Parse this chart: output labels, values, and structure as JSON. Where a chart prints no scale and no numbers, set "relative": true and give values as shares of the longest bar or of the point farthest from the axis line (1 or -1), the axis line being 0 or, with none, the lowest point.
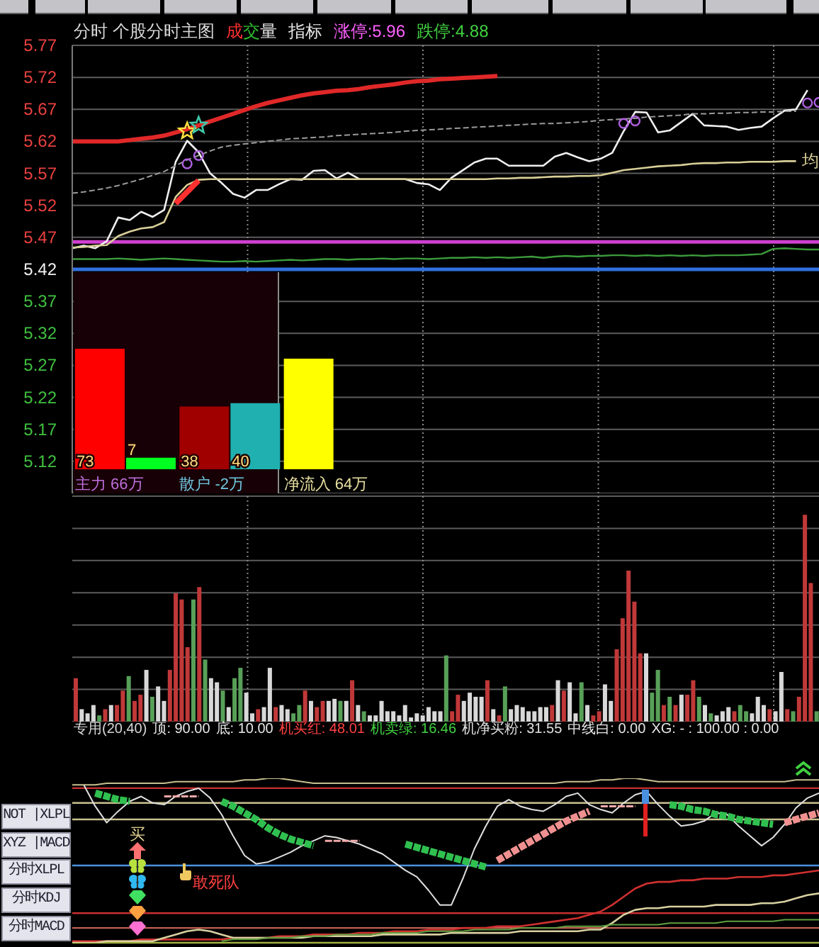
{
  "chart_data": [
    {
      "type": "line",
      "title": "分时 个股分时主图",
      "annotations": [
        "成交量",
        "指标",
        "涨停:5.96",
        "跌停:4.88"
      ],
      "categories": [
        null,
        null,
        null,
        null,
        null,
        null,
        null,
        null,
        null,
        null,
        null,
        null,
        null,
        null,
        null,
        null,
        null,
        null,
        null,
        null,
        null,
        null,
        null,
        null,
        null,
        null,
        null,
        null,
        null,
        null,
        null,
        null,
        null,
        null,
        null,
        null,
        null,
        null,
        null,
        null,
        null,
        null,
        null,
        null,
        null,
        null,
        null,
        null,
        null,
        null,
        null,
        null,
        null,
        null,
        null,
        null,
        null,
        null,
        null,
        null,
        null,
        null,
        null,
        null,
        null,
        null
      ],
      "ylim": [
        5.07,
        5.77
      ],
      "yticks": [
        5.12,
        5.17,
        5.22,
        5.27,
        5.32,
        5.37,
        5.42,
        5.47,
        5.52,
        5.57,
        5.62,
        5.67,
        5.72,
        5.77
      ],
      "tick_labels": "y",
      "grid": true,
      "series": [
        {
          "color": "#f0f0f0",
          "values": [
            5.453,
            5.457,
            5.453,
            5.464,
            5.501,
            5.497,
            5.51,
            5.502,
            5.513,
            5.588,
            5.621,
            5.603,
            5.57,
            5.555,
            5.538,
            5.532,
            5.544,
            5.544,
            5.553,
            5.561,
            5.56,
            5.574,
            5.575,
            5.562,
            5.571,
            5.561,
            5.561,
            5.561,
            5.561,
            5.561,
            5.555,
            5.553,
            5.544,
            5.563,
            5.575,
            5.587,
            5.593,
            5.593,
            5.582,
            5.582,
            5.582,
            5.582,
            5.596,
            5.602,
            5.595,
            5.589,
            5.593,
            5.602,
            5.636,
            5.666,
            5.665,
            5.634,
            5.637,
            5.65,
            5.663,
            5.645,
            5.644,
            5.643,
            5.638,
            5.641,
            5.643,
            5.656,
            5.668,
            5.67,
            5.7,
            null
          ]
        },
        {
          "name": "均",
          "color": "#d8cf98",
          "values": [
            5.454,
            5.455,
            5.457,
            5.458,
            5.472,
            5.479,
            5.484,
            5.486,
            5.494,
            5.533,
            5.552,
            5.56,
            5.561,
            5.561,
            5.561,
            5.561,
            5.561,
            5.561,
            5.561,
            5.561,
            5.561,
            5.561,
            5.561,
            5.561,
            5.561,
            5.561,
            5.561,
            5.561,
            5.561,
            5.561,
            5.561,
            5.561,
            5.561,
            5.561,
            5.561,
            5.561,
            5.561,
            5.562,
            5.562,
            5.563,
            5.563,
            5.564,
            5.565,
            5.565,
            5.566,
            5.566,
            5.567,
            5.571,
            5.575,
            5.577,
            5.579,
            5.581,
            5.582,
            5.583,
            5.585,
            5.586,
            5.586,
            5.587,
            5.587,
            5.588,
            5.588,
            5.588,
            5.589,
            5.589,
            null,
            null
          ]
        },
        {
          "color": "#e02828",
          "values": [
            5.62,
            5.62,
            5.62,
            5.62,
            5.62,
            5.622,
            5.624,
            5.626,
            5.629,
            5.634,
            5.639,
            5.645,
            5.651,
            5.657,
            5.663,
            5.669,
            5.675,
            5.68,
            5.684,
            5.688,
            5.692,
            5.695,
            5.697,
            5.699,
            5.7,
            5.702,
            5.705,
            5.707,
            5.709,
            5.712,
            5.714,
            5.715,
            5.717,
            5.718,
            5.719,
            5.72,
            5.721,
            5.722,
            null,
            null,
            null,
            null,
            null,
            null,
            null,
            null,
            null,
            null,
            null,
            null,
            null,
            null,
            null,
            null,
            null,
            null,
            null,
            null,
            null,
            null,
            null,
            null,
            null,
            null,
            null,
            null
          ]
        },
        {
          "color": "#9a9a9a",
          "line_style": "dashed",
          "values": [
            5.539,
            5.541,
            5.544,
            5.547,
            5.551,
            5.556,
            5.561,
            5.567,
            5.573,
            5.582,
            5.591,
            5.598,
            5.605,
            5.611,
            5.614,
            5.616,
            5.618,
            5.62,
            5.622,
            5.624,
            5.625,
            5.626,
            5.627,
            5.629,
            5.63,
            5.631,
            5.632,
            5.633,
            5.634,
            5.636,
            5.637,
            5.638,
            5.639,
            5.64,
            5.641,
            5.642,
            5.643,
            5.644,
            5.645,
            5.646,
            5.647,
            5.648,
            5.648,
            5.649,
            5.65,
            5.651,
            5.653,
            5.654,
            5.655,
            5.656,
            5.658,
            5.659,
            5.66,
            5.661,
            5.663,
            5.663,
            5.664,
            5.664,
            5.665,
            5.665,
            5.666,
            5.666,
            5.667,
            5.667,
            null,
            null
          ]
        },
        {
          "color": "#3c9c3c",
          "values": [
            5.436,
            5.436,
            5.436,
            5.436,
            5.437,
            5.436,
            5.435,
            5.436,
            5.437,
            5.436,
            5.435,
            5.434,
            5.433,
            5.432,
            5.432,
            5.433,
            5.432,
            5.433,
            5.434,
            5.435,
            5.434,
            5.435,
            5.436,
            5.436,
            5.435,
            5.436,
            5.436,
            5.437,
            5.436,
            5.437,
            5.437,
            5.436,
            5.437,
            5.438,
            5.438,
            5.439,
            5.438,
            5.439,
            5.438,
            5.439,
            5.44,
            5.438,
            5.44,
            5.441,
            5.44,
            5.441,
            5.441,
            5.442,
            5.442,
            5.441,
            5.442,
            5.441,
            5.442,
            5.441,
            5.442,
            5.441,
            5.442,
            5.442,
            5.442,
            5.443,
            5.444,
            5.452,
            5.453,
            5.452,
            5.451,
            5.451
          ]
        },
        {
          "color": "#ff3030",
          "values": [
            null,
            null,
            null,
            null,
            null,
            null,
            null,
            null,
            null,
            5.523,
            5.541,
            5.559,
            null,
            null,
            null,
            null,
            null,
            null,
            null,
            null,
            null,
            null,
            null,
            null,
            null,
            null,
            null,
            null,
            null,
            null,
            null,
            null,
            null,
            null,
            null,
            null,
            null,
            null,
            null,
            null,
            null,
            null,
            null,
            null,
            null,
            null,
            null,
            null,
            null,
            null,
            null,
            null,
            null,
            null,
            null,
            null,
            null,
            null,
            null,
            null,
            null,
            null,
            null,
            null,
            null,
            null
          ]
        },
        {
          "type": "scatter",
          "color": "#ffe040",
          "marker": "star",
          "values": [
            null,
            null,
            null,
            null,
            null,
            null,
            null,
            null,
            null,
            null,
            5.636,
            null,
            null,
            null,
            null,
            null,
            null,
            null,
            null,
            null,
            null,
            null,
            null,
            null,
            null,
            null,
            null,
            null,
            null,
            null,
            null,
            null,
            null,
            null,
            null,
            null,
            null,
            null,
            null,
            null,
            null,
            null,
            null,
            null,
            null,
            null,
            null,
            null,
            null,
            null,
            null,
            null,
            null,
            null,
            null,
            null,
            null,
            null,
            null,
            null,
            null,
            null,
            null,
            null,
            null,
            null
          ]
        },
        {
          "type": "scatter",
          "color": "#40c8a8",
          "marker": "star",
          "values": [
            null,
            null,
            null,
            null,
            null,
            null,
            null,
            null,
            null,
            null,
            null,
            5.645,
            null,
            null,
            null,
            null,
            null,
            null,
            null,
            null,
            null,
            null,
            null,
            null,
            null,
            null,
            null,
            null,
            null,
            null,
            null,
            null,
            null,
            null,
            null,
            null,
            null,
            null,
            null,
            null,
            null,
            null,
            null,
            null,
            null,
            null,
            null,
            null,
            null,
            null,
            null,
            null,
            null,
            null,
            null,
            null,
            null,
            null,
            null,
            null,
            null,
            null,
            null,
            null,
            null,
            null
          ]
        },
        {
          "type": "scatter",
          "color": "#b060e0",
          "marker": "circle",
          "values": [
            null,
            null,
            null,
            null,
            null,
            null,
            null,
            null,
            null,
            null,
            5.585,
            5.598,
            null,
            null,
            null,
            null,
            null,
            null,
            null,
            null,
            null,
            null,
            null,
            null,
            null,
            null,
            null,
            null,
            null,
            null,
            null,
            null,
            null,
            null,
            null,
            null,
            null,
            null,
            null,
            null,
            null,
            null,
            null,
            null,
            null,
            null,
            null,
            null,
            5.648,
            5.652,
            null,
            null,
            null,
            null,
            null,
            null,
            null,
            null,
            null,
            null,
            null,
            null,
            null,
            null,
            5.68,
            5.681
          ]
        }
      ],
      "ref_lines": [
        {
          "axis": "y",
          "value": 5.463,
          "color": "#d040d0"
        },
        {
          "axis": "y",
          "value": 5.42,
          "color": "#3070e0"
        }
      ]
    },
    {
      "type": "bar",
      "categories": [
        "主力 66万",
        "散户 -2万",
        "净流入 64万"
      ],
      "series": [
        {
          "colors": [
            "#ff0000",
            "#a00000",
            "#ffff00"
          ],
          "values": [
            73,
            38,
            67
          ],
          "value_labels": [
            "73",
            "38",
            null
          ]
        },
        {
          "colors": [
            "#00ff20",
            "#20b0b0",
            null
          ],
          "values": [
            7,
            40,
            null
          ],
          "value_labels": [
            "7",
            "40",
            null
          ]
        }
      ]
    },
    {
      "type": "bar",
      "relative": true,
      "grid": true,
      "categories": [
        null,
        null,
        null,
        null,
        null,
        null,
        null,
        null,
        null,
        null,
        null,
        null,
        null,
        null,
        null,
        null,
        null,
        null,
        null,
        null,
        null,
        null,
        null,
        null,
        null,
        null,
        null,
        null,
        null,
        null,
        null,
        null,
        null,
        null,
        null,
        null,
        null,
        null,
        null,
        null,
        null,
        null,
        null,
        null,
        null,
        null,
        null,
        null,
        null,
        null,
        null,
        null,
        null,
        null,
        null,
        null,
        null,
        null,
        null,
        null,
        null,
        null,
        null,
        null,
        null,
        null,
        null,
        null,
        null,
        null,
        null,
        null,
        null,
        null,
        null,
        null,
        null,
        null,
        null,
        null,
        null,
        null,
        null,
        null,
        null,
        null,
        null,
        null,
        null,
        null,
        null,
        null,
        null,
        null,
        null,
        null,
        null,
        null,
        null,
        null,
        null,
        null,
        null,
        null,
        null,
        null,
        null,
        null,
        null,
        null,
        null,
        null,
        null,
        null,
        null,
        null,
        null,
        null,
        null,
        null,
        null,
        null,
        null,
        null,
        null,
        null,
        null
      ],
      "values": [
        0.21,
        0.06,
        0.04,
        0.08,
        0.03,
        0.06,
        0.08,
        0.08,
        0.15,
        0.22,
        0.1,
        0.13,
        0.25,
        0.12,
        0.17,
        0.1,
        0.25,
        0.62,
        0.59,
        0.36,
        0.59,
        0.65,
        0.3,
        0.21,
        0.19,
        0.15,
        0.07,
        0.21,
        0.26,
        0.14,
        0.04,
        0.06,
        0.07,
        0.26,
        0.07,
        0.08,
        0.06,
        0.04,
        0.08,
        0.15,
        0.1,
        0.07,
        0.1,
        0.1,
        0.11,
        0.1,
        0.1,
        0.2,
        0.08,
        0.05,
        0.03,
        0.03,
        0.1,
        0.05,
        0.05,
        0.03,
        0.08,
        0.02,
        0.04,
        0.03,
        0.07,
        0.05,
        0.05,
        0.32,
        0.05,
        0.13,
        0.1,
        0.14,
        0.12,
        0.12,
        0.2,
        0.06,
        0.03,
        0.17,
        0.06,
        0.08,
        0.07,
        0.05,
        0.05,
        0.07,
        0.07,
        0.08,
        0.2,
        0.15,
        0.19,
        0.04,
        0.19,
        0.08,
        0.03,
        0.05,
        0.18,
        0.1,
        0.35,
        0.5,
        0.73,
        0.58,
        0.33,
        0.33,
        0.14,
        0.25,
        0.08,
        0.12,
        0.08,
        0.13,
        0.13,
        0.2,
        0.12,
        0.08,
        0.04,
        0.03,
        0.05,
        0.07,
        0.05,
        0.08,
        0.05,
        0.04,
        0.12,
        0.08,
        0.06,
        0.05,
        0.24,
        0.06,
        0.05,
        0.12,
        1,
        0.67,
        0.05
      ],
      "colors": [
        "#c03838",
        "#d8d8d8",
        "#d8d8d8",
        "#d8d8d8",
        "#58a058",
        "#c03838",
        "#d8d8d8",
        "#c03838",
        "#c03838",
        "#58a058",
        "#c03838",
        "#c03838",
        "#d8d8d8",
        "#58a058",
        "#d8d8d8",
        "#d8d8d8",
        "#c03838",
        "#c03838",
        "#c03838",
        "#c03838",
        "#58a058",
        "#c03838",
        "#58a058",
        "#d8d8d8",
        "#d8d8d8",
        "#58a058",
        "#d8d8d8",
        "#58a058",
        "#58a058",
        "#d8d8d8",
        "#d8d8d8",
        "#c03838",
        "#d8d8d8",
        "#d8d8d8",
        "#c03838",
        "#d8d8d8",
        "#d8d8d8",
        "#58a058",
        "#58a058",
        "#c03838",
        "#d8d8d8",
        "#c03838",
        "#c03838",
        "#d8d8d8",
        "#d8d8d8",
        "#58a058",
        "#d8d8d8",
        "#c03838",
        "#d8d8d8",
        "#58a058",
        "#d8d8d8",
        "#d8d8d8",
        "#d8d8d8",
        "#d8d8d8",
        "#d8d8d8",
        "#d8d8d8",
        "#d8d8d8",
        "#d8d8d8",
        "#d8d8d8",
        "#d8d8d8",
        "#d8d8d8",
        "#d8d8d8",
        "#d8d8d8",
        "#58a058",
        "#c03838",
        "#c03838",
        "#d8d8d8",
        "#d8d8d8",
        "#d8d8d8",
        "#d8d8d8",
        "#c03838",
        "#d8d8d8",
        "#c03838",
        "#58a058",
        "#d8d8d8",
        "#d8d8d8",
        "#d8d8d8",
        "#d8d8d8",
        "#d8d8d8",
        "#d8d8d8",
        "#d8d8d8",
        "#c03838",
        "#d8d8d8",
        "#c03838",
        "#d8d8d8",
        "#d8d8d8",
        "#58a058",
        "#d8d8d8",
        "#c03838",
        "#c03838",
        "#d8d8d8",
        "#d8d8d8",
        "#c03838",
        "#c03838",
        "#c03838",
        "#c03838",
        "#c03838",
        "#d8d8d8",
        "#58a058",
        "#58a058",
        "#c03838",
        "#58a058",
        "#c03838",
        "#d8d8d8",
        "#c03838",
        "#c03838",
        "#58a058",
        "#d8d8d8",
        "#58a058",
        "#d8d8d8",
        "#d8d8d8",
        "#d8d8d8",
        "#c03838",
        "#58a058",
        "#58a058",
        "#d8d8d8",
        "#d8d8d8",
        "#d8d8d8",
        "#c03838",
        "#d8d8d8",
        "#d8d8d8",
        "#c03838",
        "#58a058",
        "#c03838",
        "#c03838",
        "#c03838",
        "#58a058"
      ]
    },
    {
      "type": "line",
      "relative": true,
      "title": "专用(20,40)",
      "annotations": [
        "顶: 90.00",
        "底: 10.00",
        "机买红: 48.01",
        "机卖绿: 16.46",
        "机净买粉: 31.55",
        "中线白: 0.00",
        "XG: - : 100.00 : 0.00",
        "买",
        "敢死队"
      ],
      "categories": [
        null,
        null,
        null,
        null,
        null,
        null,
        null,
        null,
        null,
        null,
        null,
        null,
        null,
        null,
        null,
        null,
        null,
        null,
        null,
        null,
        null,
        null,
        null,
        null,
        null,
        null,
        null,
        null,
        null,
        null,
        null,
        null,
        null,
        null,
        null,
        null,
        null,
        null,
        null,
        null,
        null,
        null,
        null,
        null,
        null,
        null,
        null,
        null,
        null,
        null,
        null,
        null,
        null,
        null,
        null,
        null,
        null,
        null,
        null,
        null,
        null,
        null,
        null,
        null,
        null,
        null
      ],
      "series": [
        {
          "color": "#e0e0e0",
          "values": [
            null,
            0.96,
            0.83,
            0.73,
            0.8,
            0.86,
            0.89,
            0.85,
            0.84,
            0.89,
            0.92,
            0.94,
            0.88,
            0.78,
            0.65,
            0.53,
            0.48,
            0.49,
            0.52,
            0.55,
            0.59,
            0.62,
            0.65,
            0.64,
            0.62,
            0.6,
            0.57,
            0.54,
            0.49,
            0.44,
            0.4,
            0.32,
            0.23,
            0.23,
            0.39,
            0.57,
            0.71,
            0.83,
            0.87,
            0.83,
            0.81,
            0.8,
            0.84,
            0.89,
            0.91,
            0.84,
            0.81,
            0.79,
            0.85,
            0.9,
            0.92,
            0.84,
            0.77,
            0.71,
            0.72,
            0.74,
            0.79,
            0.78,
            0.71,
            0.65,
            0.59,
            0.64,
            0.72,
            0.82,
            0.88,
            0.91
          ]
        },
        {
          "color": "#c8c090",
          "values": [
            0.96,
            0.96,
            0.96,
            0.97,
            0.97,
            0.97,
            0.97,
            0.97,
            0.97,
            0.98,
            0.98,
            0.98,
            0.98,
            0.98,
            0.98,
            0.99,
            0.99,
            1.0,
            1.0,
            0.99,
            0.98,
            0.97,
            0.97,
            0.97,
            0.97,
            0.97,
            0.97,
            0.97,
            0.97,
            0.97,
            0.97,
            0.97,
            0.97,
            0.97,
            0.97,
            0.97,
            0.97,
            0.97,
            0.97,
            0.97,
            0.97,
            0.97,
            0.97,
            0.98,
            0.98,
            0.98,
            0.99,
            0.99,
            1.0,
            1.0,
            0.99,
            0.98,
            0.98,
            0.98,
            0.98,
            0.98,
            0.98,
            0.98,
            0.98,
            0.98,
            0.98,
            0.98,
            0.98,
            0.99,
            0.99,
            0.99
          ]
        },
        {
          "color": "#30c050",
          "line_style": "dashed",
          "values": [
            null,
            null,
            0.91,
            0.89,
            0.87,
            0.86,
            null,
            null,
            null,
            null,
            null,
            null,
            null,
            0.86,
            0.83,
            0.79,
            0.75,
            0.7,
            0.66,
            0.63,
            0.61,
            0.59,
            null,
            null,
            null,
            null,
            null,
            null,
            null,
            0.6,
            0.58,
            0.56,
            0.54,
            0.52,
            0.5,
            0.48,
            0.46,
            null,
            null,
            null,
            null,
            null,
            null,
            null,
            null,
            null,
            null,
            null,
            null,
            null,
            null,
            null,
            0.84,
            0.83,
            0.81,
            0.8,
            0.78,
            0.77,
            0.75,
            0.74,
            0.73,
            0.72,
            null,
            null,
            null,
            null
          ]
        },
        {
          "color": "#f09090",
          "line_style": "dashed",
          "values": [
            null,
            null,
            null,
            null,
            null,
            null,
            null,
            null,
            null,
            null,
            null,
            null,
            null,
            null,
            null,
            null,
            null,
            null,
            null,
            null,
            null,
            null,
            null,
            null,
            null,
            null,
            null,
            null,
            null,
            null,
            null,
            null,
            null,
            null,
            null,
            null,
            null,
            0.5,
            0.54,
            0.58,
            0.62,
            0.66,
            0.7,
            0.74,
            0.77,
            0.8,
            null,
            null,
            null,
            null,
            null,
            null,
            null,
            null,
            null,
            null,
            null,
            null,
            null,
            null,
            null,
            null,
            0.73,
            0.75,
            0.77,
            0.79
          ]
        },
        {
          "color": "#f0a8a8",
          "line_style": "dashed",
          "values": [
            null,
            null,
            null,
            null,
            null,
            null,
            null,
            null,
            0.89,
            0.89,
            0.89,
            0.89,
            null,
            null,
            null,
            null,
            null,
            null,
            null,
            null,
            null,
            null,
            0.62,
            0.62,
            0.62,
            0.62,
            null,
            null,
            null,
            null,
            null,
            null,
            null,
            null,
            null,
            null,
            null,
            null,
            null,
            null,
            null,
            null,
            null,
            null,
            null,
            null,
            0.83,
            0.83,
            0.83,
            0.83,
            null,
            null,
            null,
            null,
            null,
            null,
            null,
            null,
            null,
            null,
            null,
            null,
            null,
            null,
            null,
            null
          ]
        },
        {
          "color": "#d03030",
          "values": [
            0.01,
            0.01,
            0.01,
            0.01,
            0.01,
            0.01,
            0.02,
            0.02,
            0.02,
            0.02,
            0.02,
            0.02,
            0.02,
            0.02,
            0.03,
            0.03,
            0.03,
            0.03,
            0.04,
            0.04,
            0.04,
            0.05,
            0.05,
            0.05,
            0.05,
            0.06,
            0.06,
            0.06,
            0.07,
            0.07,
            0.07,
            0.08,
            0.08,
            0.08,
            0.09,
            0.09,
            0.09,
            0.1,
            0.1,
            0.1,
            0.11,
            0.12,
            0.13,
            0.14,
            0.15,
            0.17,
            0.19,
            0.23,
            0.28,
            0.33,
            0.36,
            0.37,
            0.37,
            0.38,
            0.38,
            0.39,
            0.39,
            0.39,
            0.4,
            0.4,
            0.4,
            0.41,
            0.41,
            0.42,
            0.43,
            0.44
          ]
        },
        {
          "color": "#d8d0a0",
          "values": [
            0.0,
            0.0,
            0.0,
            0.01,
            0.01,
            0.01,
            0.01,
            0.01,
            0.03,
            0.05,
            0.07,
            0.08,
            0.07,
            0.05,
            0.03,
            0.03,
            0.03,
            0.03,
            0.03,
            0.03,
            0.03,
            0.04,
            0.04,
            0.04,
            0.04,
            0.04,
            0.04,
            0.05,
            0.05,
            0.05,
            0.05,
            0.05,
            0.05,
            0.06,
            0.06,
            0.06,
            0.06,
            0.06,
            0.06,
            0.07,
            0.07,
            0.07,
            0.07,
            0.07,
            0.07,
            0.08,
            0.08,
            0.12,
            0.17,
            0.2,
            0.21,
            0.21,
            0.22,
            0.22,
            0.22,
            0.22,
            0.23,
            0.23,
            0.23,
            0.23,
            0.24,
            0.24,
            0.25,
            0.27,
            0.29,
            0.3
          ]
        },
        {
          "color": "#60a040",
          "values": [
            null,
            null,
            null,
            null,
            null,
            null,
            null,
            null,
            null,
            null,
            null,
            null,
            null,
            0.01,
            0.02,
            0.02,
            0.02,
            0.03,
            0.03,
            0.03,
            0.04,
            0.04,
            0.04,
            0.05,
            0.05,
            0.05,
            0.05,
            0.06,
            0.06,
            0.06,
            0.06,
            0.07,
            0.07,
            0.07,
            0.07,
            0.08,
            0.08,
            0.08,
            0.08,
            0.09,
            0.09,
            0.09,
            0.09,
            0.1,
            0.1,
            0.1,
            0.1,
            0.11,
            0.11,
            0.11,
            0.11,
            0.11,
            0.12,
            0.12,
            0.12,
            0.12,
            0.12,
            0.13,
            0.13,
            0.13,
            0.13,
            0.13,
            0.14,
            0.14,
            0.14,
            0.14
          ]
        }
      ],
      "ref_lines": [
        {
          "axis": "y",
          "value": 0.94,
          "color": "#c83030"
        },
        {
          "axis": "y",
          "value": 0.85,
          "color": "#c8c090"
        },
        {
          "axis": "y",
          "value": 0.75,
          "color": "#c8c090"
        },
        {
          "axis": "y",
          "value": 0.47,
          "color": "#4a90e0"
        },
        {
          "axis": "y",
          "value": 0.18,
          "color": "#c83030"
        },
        {
          "axis": "y",
          "value": 0.09,
          "color": "#c06050"
        },
        {
          "axis": "y",
          "value": 0,
          "color": "#a0b040"
        }
      ]
    },
    {
      "type": "other",
      "annotations": [
        "NOT |XLPL",
        "XYZ |MACD",
        "分时XLPL",
        "分时KDJ",
        "分时MACD"
      ]
    }
  ]
}
